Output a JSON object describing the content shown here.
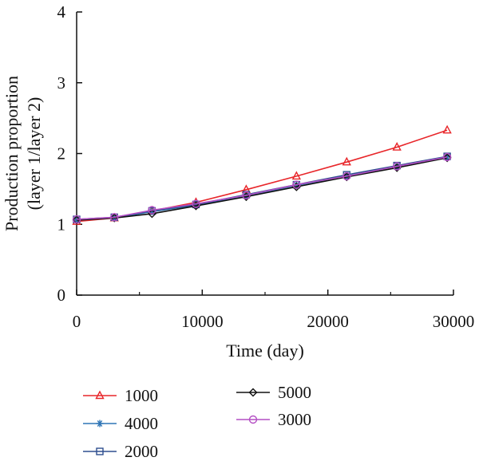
{
  "chart_data": {
    "type": "line",
    "title": "",
    "xlabel": "Time (day)",
    "ylabel_lines": [
      "Production proportion",
      "(layer 1/layer 2)"
    ],
    "xlim": [
      0,
      30000
    ],
    "ylim": [
      0,
      4
    ],
    "xticks": [
      0,
      10000,
      20000,
      30000
    ],
    "yticks": [
      0,
      1,
      2,
      3,
      4
    ],
    "grid": false,
    "legend_placement": "bottom",
    "series": [
      {
        "name": "1000",
        "color": "#e8262a",
        "marker": "triangle",
        "x": [
          0,
          3000,
          6000,
          9500,
          13500,
          17500,
          21500,
          25500,
          29500
        ],
        "y": [
          1.04,
          1.09,
          1.19,
          1.31,
          1.49,
          1.68,
          1.88,
          2.09,
          2.33
        ]
      },
      {
        "name": "4000",
        "color": "#2f75b5",
        "marker": "asterisk",
        "x": [
          0,
          3000,
          6000,
          9500,
          13500,
          17500,
          21500,
          25500,
          29500
        ],
        "y": [
          1.06,
          1.09,
          1.18,
          1.27,
          1.4,
          1.55,
          1.68,
          1.82,
          1.95
        ]
      },
      {
        "name": "2000",
        "color": "#2e4e8f",
        "marker": "square",
        "x": [
          0,
          3000,
          6000,
          9500,
          13500,
          17500,
          21500,
          25500,
          29500
        ],
        "y": [
          1.07,
          1.1,
          1.19,
          1.28,
          1.42,
          1.56,
          1.7,
          1.83,
          1.96
        ]
      },
      {
        "name": "5000",
        "color": "#111111",
        "marker": "diamond",
        "x": [
          0,
          3000,
          6000,
          9500,
          13500,
          17500,
          21500,
          25500,
          29500
        ],
        "y": [
          1.06,
          1.09,
          1.15,
          1.26,
          1.39,
          1.53,
          1.67,
          1.8,
          1.94
        ]
      },
      {
        "name": "3000",
        "color": "#b44fc4",
        "marker": "circle",
        "x": [
          0,
          3000,
          6000,
          9500,
          13500,
          17500,
          21500,
          25500,
          29500
        ],
        "y": [
          1.07,
          1.1,
          1.2,
          1.29,
          1.41,
          1.56,
          1.68,
          1.82,
          1.95
        ]
      }
    ]
  }
}
